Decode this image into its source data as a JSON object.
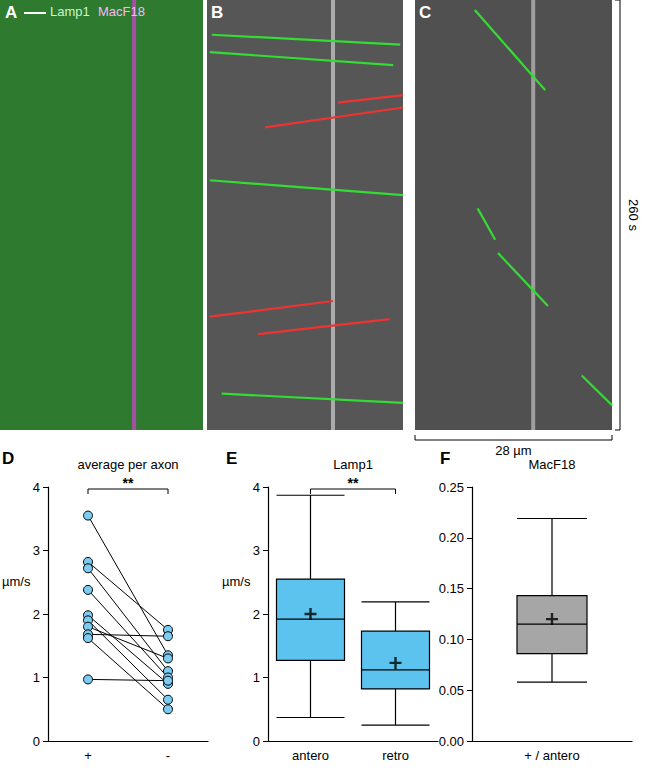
{
  "chart_data": [
    {
      "panel": "A",
      "type": "kymograph",
      "xlim": [
        0,
        28
      ],
      "ylim": [
        0,
        260
      ],
      "tick_labels": false,
      "color": "#2e7a2e",
      "series": [
        {
          "name": "Lamp1",
          "color": "#c8f7c8"
        },
        {
          "name": "MacF18",
          "color": "#f7b8f7"
        }
      ],
      "stationary": {
        "x": 18.5,
        "color": "#d040d0"
      }
    },
    {
      "panel": "B",
      "type": "kymograph",
      "xlim": [
        0,
        28
      ],
      "ylim": [
        0,
        260
      ],
      "tick_labels": false,
      "color": "#565656",
      "stationary": {
        "x": 18,
        "color": "#c8c8c8"
      },
      "tracks": [
        {
          "color": "#33dd33",
          "x": [
            0.7,
            27.6
          ],
          "y": [
            21,
            27
          ]
        },
        {
          "color": "#33dd33",
          "x": [
            0.4,
            26.6
          ],
          "y": [
            31.5,
            39.4
          ]
        },
        {
          "color": "#ee3333",
          "x": [
            28,
            18.7
          ],
          "y": [
            57.5,
            62
          ]
        },
        {
          "color": "#ee3333",
          "x": [
            28,
            8.3
          ],
          "y": [
            65,
            77
          ]
        },
        {
          "color": "#33dd33",
          "x": [
            0.4,
            28
          ],
          "y": [
            109,
            118
          ]
        },
        {
          "color": "#ee3333",
          "x": [
            18,
            0.4
          ],
          "y": [
            182,
            191.5
          ]
        },
        {
          "color": "#ee3333",
          "x": [
            26.1,
            7.3
          ],
          "y": [
            193,
            202
          ]
        },
        {
          "color": "#33dd33",
          "x": [
            2.1,
            28
          ],
          "y": [
            238,
            243.6
          ]
        }
      ]
    },
    {
      "panel": "C",
      "type": "kymograph",
      "xlim": [
        0,
        28
      ],
      "ylim": [
        0,
        260
      ],
      "tick_labels": false,
      "color": "#505050",
      "xlabel": "28 µm",
      "ylabel": "260 s",
      "stationary": {
        "x": 16.8,
        "color": "#b8b8b8"
      },
      "tracks": [
        {
          "color": "#33dd33",
          "x": [
            8.5,
            18.5
          ],
          "y": [
            6,
            54.5
          ]
        },
        {
          "color": "#33dd33",
          "x": [
            8.9,
            11.4
          ],
          "y": [
            126,
            145
          ]
        },
        {
          "color": "#33dd33",
          "x": [
            11.8,
            18.9
          ],
          "y": [
            153,
            185
          ]
        },
        {
          "color": "#33dd33",
          "x": [
            23.7,
            28
          ],
          "y": [
            227,
            245
          ]
        }
      ]
    },
    {
      "panel": "D",
      "type": "paired",
      "title": "average per axon",
      "categories": [
        "+",
        "-"
      ],
      "ylabel": "µm/s",
      "ylim": [
        0,
        4
      ],
      "yticks": [
        0,
        1,
        2,
        3,
        4
      ],
      "grid": false,
      "color": "#7ccbf0",
      "significance": "**",
      "pairs": [
        [
          3.55,
          1.35
        ],
        [
          2.82,
          1.75
        ],
        [
          2.72,
          1.1
        ],
        [
          2.38,
          1.0
        ],
        [
          1.98,
          0.9
        ],
        [
          1.9,
          0.65
        ],
        [
          1.8,
          1.3
        ],
        [
          1.68,
          1.65
        ],
        [
          1.62,
          0.5
        ],
        [
          0.97,
          0.95
        ]
      ]
    },
    {
      "panel": "E",
      "type": "box",
      "title": "Lamp1",
      "categories": [
        "antero",
        "retro"
      ],
      "ylabel": "µm/s",
      "ylim": [
        0,
        4
      ],
      "yticks": [
        0,
        1,
        2,
        3,
        4
      ],
      "grid": false,
      "color": "#5bc3ee",
      "significance": "**",
      "boxes": [
        {
          "min": 0.37,
          "q1": 1.27,
          "median": 1.92,
          "q3": 2.55,
          "max": 3.87,
          "mean": 2.0
        },
        {
          "min": 0.25,
          "q1": 0.82,
          "median": 1.12,
          "q3": 1.73,
          "max": 2.19,
          "mean": 1.23
        }
      ]
    },
    {
      "panel": "F",
      "type": "box",
      "title": "MacF18",
      "categories": [
        "+ / antero"
      ],
      "ylim": [
        0,
        0.25
      ],
      "yticks": [
        {
          "value": 0,
          "label": "0.00"
        },
        {
          "value": 0.05,
          "label": "0.05"
        },
        {
          "value": 0.1,
          "label": "0.10"
        },
        {
          "value": 0.15,
          "label": "0.15"
        },
        {
          "value": 0.2,
          "label": "0.20"
        },
        {
          "value": 0.25,
          "label": "0.25"
        }
      ],
      "grid": false,
      "color": "#a6a6a6",
      "boxes": [
        {
          "min": 0.058,
          "q1": 0.086,
          "median": 0.115,
          "q3": 0.143,
          "max": 0.219,
          "mean": 0.12
        }
      ]
    }
  ]
}
